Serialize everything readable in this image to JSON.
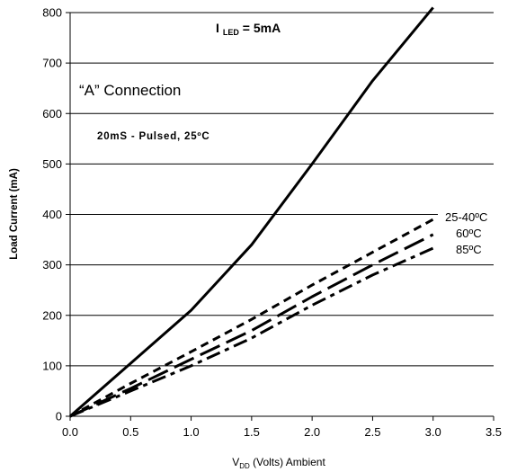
{
  "chart_data": {
    "type": "line",
    "xlabel": "V",
    "xlabel_sub": "DD",
    "xlabel_rest": " (Volts) Ambient",
    "ylabel": "Load Current (mA)",
    "xlim": [
      0,
      3.5
    ],
    "ylim": [
      0,
      800
    ],
    "xticks": [
      "0.0",
      "0.5",
      "1.0",
      "1.5",
      "2.0",
      "2.5",
      "3.0",
      "3.5"
    ],
    "yticks": [
      "0",
      "100",
      "200",
      "300",
      "400",
      "500",
      "600",
      "700",
      "800"
    ],
    "grid": "horizontal",
    "annotations": {
      "iled_prefix": "I",
      "iled_sub": "LED",
      "iled_rest": " = 5mA",
      "connection": "“A” Connection",
      "pulsed": "20mS - Pulsed, 25ºC"
    },
    "series": [
      {
        "label": "",
        "style": "solid",
        "x": [
          0,
          0.5,
          1.0,
          1.5,
          2.0,
          2.5,
          3.0
        ],
        "y": [
          0,
          105,
          210,
          340,
          500,
          665,
          810
        ]
      },
      {
        "label": "25-40ºC",
        "style": "short-dash",
        "x": [
          0,
          0.5,
          1.0,
          1.5,
          2.0,
          2.5,
          3.0
        ],
        "y": [
          0,
          65,
          128,
          192,
          260,
          325,
          390
        ]
      },
      {
        "label": "60ºC",
        "style": "long-dash",
        "x": [
          0,
          0.5,
          1.0,
          1.5,
          2.0,
          2.5,
          3.0
        ],
        "y": [
          0,
          55,
          113,
          170,
          237,
          300,
          360
        ]
      },
      {
        "label": "85ºC",
        "style": "dash-dot",
        "x": [
          0,
          0.5,
          1.0,
          1.5,
          2.0,
          2.5,
          3.0
        ],
        "y": [
          0,
          50,
          100,
          155,
          220,
          280,
          333
        ]
      }
    ]
  }
}
